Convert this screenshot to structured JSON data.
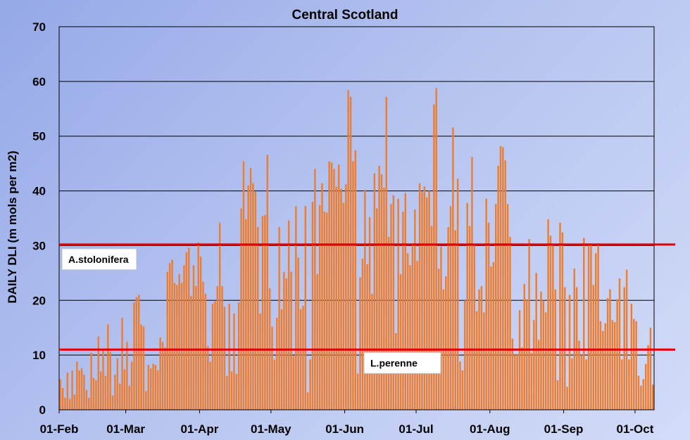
{
  "chart_data": {
    "type": "bar",
    "title": "Central Scotland",
    "ylabel": "DAILY DLI (m mols per m2)",
    "xlabel": "",
    "ylim": [
      0,
      70
    ],
    "yticks": [
      0,
      10,
      20,
      30,
      40,
      50,
      60,
      70
    ],
    "grid": true,
    "bar_color": "#ed7d31",
    "x_ticks": [
      {
        "label": "01-Feb",
        "day": 0
      },
      {
        "label": "01-Mar",
        "day": 28
      },
      {
        "label": "01-Apr",
        "day": 59
      },
      {
        "label": "01-May",
        "day": 89
      },
      {
        "label": "01-Jun",
        "day": 120
      },
      {
        "label": "01-Jul",
        "day": 150
      },
      {
        "label": "01-Aug",
        "day": 181
      },
      {
        "label": "01-Sep",
        "day": 212
      },
      {
        "label": "01-Oct",
        "day": 242
      }
    ],
    "values": [
      5.6,
      4.0,
      2.2,
      6.8,
      2.0,
      7.2,
      2.8,
      8.8,
      7.2,
      7.6,
      6.4,
      3.6,
      2.2,
      10.4,
      5.8,
      5.4,
      13.4,
      7.0,
      11.0,
      6.2,
      15.6,
      10.6,
      2.6,
      6.4,
      9.4,
      4.8,
      16.8,
      7.4,
      12.4,
      4.4,
      8.8,
      19.6,
      20.6,
      21.0,
      15.6,
      15.2,
      3.4,
      8.2,
      7.6,
      8.4,
      8.2,
      7.2,
      13.2,
      12.4,
      11.4,
      25.2,
      26.8,
      27.4,
      23.2,
      22.8,
      24.8,
      23.2,
      26.4,
      28.8,
      29.6,
      20.8,
      26.4,
      22.6,
      30.6,
      28.0,
      23.4,
      21.2,
      11.6,
      8.8,
      19.4,
      19.8,
      22.6,
      34.2,
      22.6,
      18.8,
      6.2,
      19.4,
      7.0,
      17.6,
      6.6,
      19.6,
      36.8,
      45.4,
      34.8,
      41.0,
      44.2,
      41.4,
      39.8,
      33.4,
      17.6,
      35.4,
      35.6,
      46.6,
      22.2,
      15.2,
      9.2,
      16.8,
      33.4,
      18.4,
      25.2,
      24.0,
      34.6,
      25.2,
      9.8,
      37.2,
      27.8,
      18.4,
      19.0,
      37.2,
      3.2,
      9.2,
      38.0,
      44.0,
      24.8,
      37.4,
      41.4,
      36.2,
      36.0,
      45.4,
      45.2,
      44.0,
      40.8,
      44.8,
      40.4,
      37.8,
      41.2,
      58.4,
      57.2,
      45.4,
      47.4,
      6.6,
      24.2,
      27.6,
      40.2,
      26.6,
      35.2,
      21.2,
      43.2,
      36.8,
      44.6,
      43.0,
      40.6,
      57.2,
      31.6,
      37.6,
      39.2,
      14.0,
      38.6,
      24.8,
      36.2,
      39.6,
      28.6,
      26.4,
      30.4,
      36.6,
      27.2,
      41.4,
      39.8,
      40.8,
      38.8,
      40.0,
      33.6,
      55.8,
      58.8,
      25.8,
      29.8,
      22.0,
      24.4,
      33.4,
      37.2,
      51.6,
      32.8,
      42.2,
      8.8,
      7.2,
      20.0,
      37.8,
      33.6,
      46.2,
      30.0,
      18.0,
      22.0,
      22.6,
      17.8,
      38.6,
      34.2,
      26.2,
      27.0,
      37.6,
      44.6,
      48.2,
      48.0,
      45.6,
      37.6,
      31.6,
      13.0,
      10.0,
      10.2,
      18.2,
      11.4,
      23.0,
      20.2,
      31.2,
      10.4,
      16.4,
      25.0,
      12.8,
      21.6,
      20.0,
      17.8,
      34.8,
      31.8,
      30.0,
      22.0,
      5.4,
      34.2,
      32.4,
      22.4,
      4.2,
      21.0,
      9.4,
      25.8,
      22.4,
      12.6,
      10.0,
      31.4,
      9.2,
      30.4,
      30.4,
      22.8,
      28.6,
      30.4,
      16.2,
      14.4,
      15.8,
      20.4,
      22.0,
      16.4,
      16.0,
      20.2,
      24.0,
      9.2,
      22.4,
      25.6,
      9.2,
      19.4,
      16.6,
      16.2,
      6.2,
      4.4,
      5.6,
      8.4,
      11.8,
      15.0,
      4.6
    ],
    "reference_lines": [
      {
        "label": "A.stolonifera",
        "value": 30.2,
        "color": "#e00000"
      },
      {
        "label": "L.perenne",
        "value": 11.0,
        "color": "#e00000"
      }
    ]
  }
}
